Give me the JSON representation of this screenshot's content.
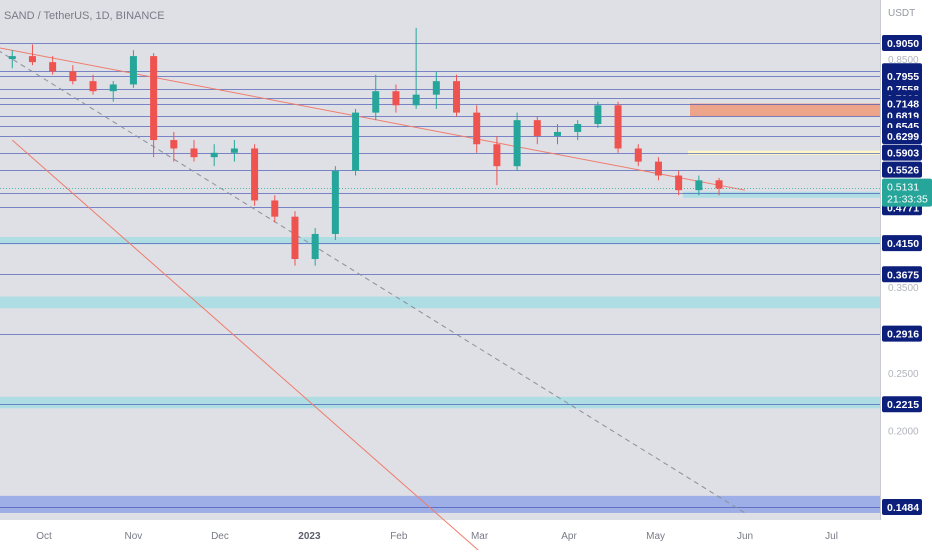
{
  "header": {
    "symbol_line": "SAND / TetherUS, 1D, BINANCE"
  },
  "currency_label": "USDT",
  "last_price": {
    "value": "0.5131",
    "countdown": "21:33:35"
  },
  "colors": {
    "up": "#26a69a",
    "down": "#ef5350",
    "level_line": "#3f51b5",
    "price_box": "#0c1f7a",
    "last_box": "#26a69a",
    "trend_red": "#f07c6c",
    "trend_dash": "#8a8f99",
    "zone_cyan": "#a9dde3",
    "zone_orange": "#ef9a7a",
    "zone_yellow": "#fff7c2",
    "zone_blue": "#97a8e6"
  },
  "chart_data": {
    "type": "candlestick",
    "title": "SAND / TetherUS, 1D, BINANCE",
    "y_axis": {
      "plain_ticks": [
        "0.8500",
        "0.3500",
        "0.2500",
        "0.2000"
      ],
      "level_labels": [
        "0.9050",
        "0.8106",
        "0.7955",
        "0.7558",
        "0.7298",
        "0.7148",
        "0.6819",
        "0.6545",
        "0.6299",
        "0.5903",
        "0.5526",
        "0.5043",
        "0.4771",
        "0.4150",
        "0.3675",
        "0.2916",
        "0.2215",
        "0.1484"
      ]
    },
    "x_axis": {
      "labels": [
        "Oct",
        "Nov",
        "Dec",
        "2023",
        "Feb",
        "Mar",
        "Apr",
        "May",
        "Jun",
        "Jul"
      ]
    },
    "horizontal_levels": [
      0.905,
      0.8106,
      0.7955,
      0.7558,
      0.7298,
      0.7148,
      0.6819,
      0.6545,
      0.6299,
      0.5903,
      0.5526,
      0.5043,
      0.4771,
      0.415,
      0.3675,
      0.2916,
      0.2215,
      0.1484
    ],
    "zones": [
      {
        "kind": "supply",
        "low": 0.68,
        "high": 0.715,
        "color": "orange"
      },
      {
        "kind": "resistance",
        "low": 0.585,
        "high": 0.595,
        "color": "yellow"
      },
      {
        "kind": "support",
        "low": 0.495,
        "high": 0.507,
        "color": "cyan"
      },
      {
        "kind": "support",
        "low": 0.413,
        "high": 0.425,
        "color": "cyan"
      },
      {
        "kind": "support",
        "low": 0.322,
        "high": 0.337,
        "color": "cyan"
      },
      {
        "kind": "support",
        "low": 0.218,
        "high": 0.228,
        "color": "cyan"
      },
      {
        "kind": "support",
        "low": 0.145,
        "high": 0.155,
        "color": "blue"
      }
    ],
    "trendlines": [
      {
        "style": "red",
        "from": [
          "2022-08-20",
          0.94
        ],
        "to": [
          "2023-06-01",
          0.51
        ]
      },
      {
        "style": "red",
        "from": [
          "2022-09-20",
          0.62
        ],
        "to": [
          "2023-03-05",
          0.12
        ]
      },
      {
        "style": "dashed",
        "from": [
          "2022-09-15",
          0.88
        ],
        "to": [
          "2023-06-01",
          0.145
        ]
      }
    ],
    "last_price": 0.5131,
    "candles": [
      {
        "d": "2022-09-20",
        "o": 0.85,
        "h": 0.88,
        "l": 0.82,
        "c": 0.86
      },
      {
        "d": "2022-09-27",
        "o": 0.86,
        "h": 0.9,
        "l": 0.83,
        "c": 0.84
      },
      {
        "d": "2022-10-04",
        "o": 0.84,
        "h": 0.86,
        "l": 0.8,
        "c": 0.81
      },
      {
        "d": "2022-10-11",
        "o": 0.81,
        "h": 0.83,
        "l": 0.77,
        "c": 0.78
      },
      {
        "d": "2022-10-18",
        "o": 0.78,
        "h": 0.8,
        "l": 0.74,
        "c": 0.75
      },
      {
        "d": "2022-10-25",
        "o": 0.75,
        "h": 0.78,
        "l": 0.72,
        "c": 0.77
      },
      {
        "d": "2022-11-01",
        "o": 0.77,
        "h": 0.88,
        "l": 0.76,
        "c": 0.86
      },
      {
        "d": "2022-11-08",
        "o": 0.86,
        "h": 0.87,
        "l": 0.58,
        "c": 0.62
      },
      {
        "d": "2022-11-15",
        "o": 0.62,
        "h": 0.64,
        "l": 0.57,
        "c": 0.6
      },
      {
        "d": "2022-11-22",
        "o": 0.6,
        "h": 0.62,
        "l": 0.57,
        "c": 0.58
      },
      {
        "d": "2022-11-29",
        "o": 0.58,
        "h": 0.61,
        "l": 0.56,
        "c": 0.59
      },
      {
        "d": "2022-12-06",
        "o": 0.59,
        "h": 0.62,
        "l": 0.57,
        "c": 0.6
      },
      {
        "d": "2022-12-13",
        "o": 0.6,
        "h": 0.61,
        "l": 0.48,
        "c": 0.49
      },
      {
        "d": "2022-12-20",
        "o": 0.49,
        "h": 0.5,
        "l": 0.45,
        "c": 0.46
      },
      {
        "d": "2022-12-27",
        "o": 0.46,
        "h": 0.47,
        "l": 0.38,
        "c": 0.39
      },
      {
        "d": "2023-01-03",
        "o": 0.39,
        "h": 0.44,
        "l": 0.38,
        "c": 0.43
      },
      {
        "d": "2023-01-10",
        "o": 0.43,
        "h": 0.56,
        "l": 0.42,
        "c": 0.55
      },
      {
        "d": "2023-01-17",
        "o": 0.55,
        "h": 0.7,
        "l": 0.54,
        "c": 0.69
      },
      {
        "d": "2023-01-24",
        "o": 0.69,
        "h": 0.8,
        "l": 0.67,
        "c": 0.75
      },
      {
        "d": "2023-01-31",
        "o": 0.75,
        "h": 0.77,
        "l": 0.69,
        "c": 0.71
      },
      {
        "d": "2023-02-07",
        "o": 0.71,
        "h": 0.96,
        "l": 0.7,
        "c": 0.74
      },
      {
        "d": "2023-02-14",
        "o": 0.74,
        "h": 0.81,
        "l": 0.7,
        "c": 0.78
      },
      {
        "d": "2023-02-21",
        "o": 0.78,
        "h": 0.8,
        "l": 0.68,
        "c": 0.69
      },
      {
        "d": "2023-02-28",
        "o": 0.69,
        "h": 0.71,
        "l": 0.59,
        "c": 0.61
      },
      {
        "d": "2023-03-07",
        "o": 0.61,
        "h": 0.63,
        "l": 0.52,
        "c": 0.56
      },
      {
        "d": "2023-03-14",
        "o": 0.56,
        "h": 0.69,
        "l": 0.55,
        "c": 0.67
      },
      {
        "d": "2023-03-21",
        "o": 0.67,
        "h": 0.68,
        "l": 0.61,
        "c": 0.63
      },
      {
        "d": "2023-03-28",
        "o": 0.63,
        "h": 0.66,
        "l": 0.61,
        "c": 0.64
      },
      {
        "d": "2023-04-04",
        "o": 0.64,
        "h": 0.67,
        "l": 0.62,
        "c": 0.66
      },
      {
        "d": "2023-04-11",
        "o": 0.66,
        "h": 0.72,
        "l": 0.65,
        "c": 0.71
      },
      {
        "d": "2023-04-18",
        "o": 0.71,
        "h": 0.72,
        "l": 0.59,
        "c": 0.6
      },
      {
        "d": "2023-04-25",
        "o": 0.6,
        "h": 0.61,
        "l": 0.56,
        "c": 0.57
      },
      {
        "d": "2023-05-02",
        "o": 0.57,
        "h": 0.58,
        "l": 0.53,
        "c": 0.54
      },
      {
        "d": "2023-05-09",
        "o": 0.54,
        "h": 0.55,
        "l": 0.5,
        "c": 0.51
      },
      {
        "d": "2023-05-16",
        "o": 0.51,
        "h": 0.54,
        "l": 0.5,
        "c": 0.53
      },
      {
        "d": "2023-05-23",
        "o": 0.53,
        "h": 0.535,
        "l": 0.5,
        "c": 0.5131
      }
    ]
  }
}
